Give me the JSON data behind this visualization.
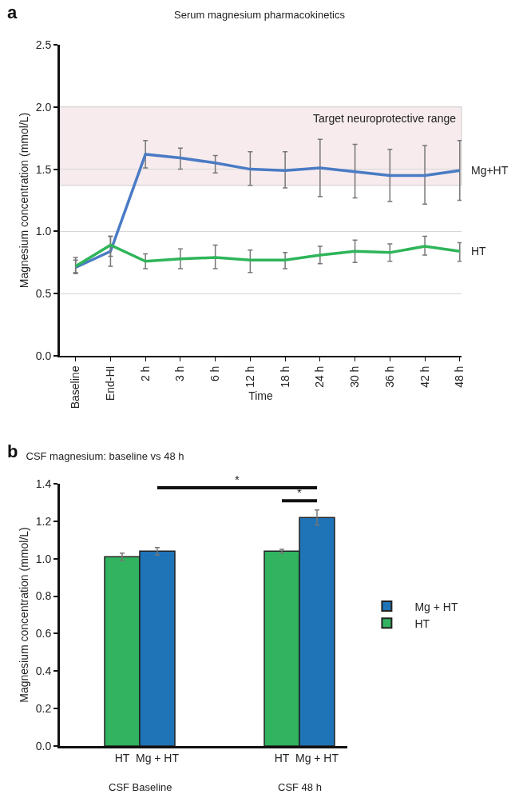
{
  "chart_data": [
    {
      "type": "line",
      "title": "Serum magnesium pharmacokinetics",
      "xlabel": "Time",
      "ylabel": "Magnesium concentration (mmol/L)",
      "annotations": [
        "a"
      ],
      "categories": [
        "Baseline",
        "End-HI",
        "2 h",
        "3 h",
        "6 h",
        "12 h",
        "18 h",
        "24 h",
        "30 h",
        "36 h",
        "42 h",
        "48 h"
      ],
      "series": [
        {
          "name": "Mg+HT",
          "color": "#4a7bc4",
          "values": [
            0.71,
            0.84,
            1.62,
            1.59,
            1.55,
            1.5,
            1.49,
            1.51,
            1.48,
            1.45,
            1.45,
            1.49
          ],
          "errors": [
            [
              0.66,
              0.77
            ],
            [
              0.72,
              0.96
            ],
            [
              1.51,
              1.73
            ],
            [
              1.5,
              1.67
            ],
            [
              1.47,
              1.61
            ],
            [
              1.37,
              1.64
            ],
            [
              1.35,
              1.64
            ],
            [
              1.28,
              1.74
            ],
            [
              1.27,
              1.7
            ],
            [
              1.24,
              1.66
            ],
            [
              1.22,
              1.69
            ],
            [
              1.25,
              1.73
            ]
          ]
        },
        {
          "name": "HT",
          "color": "#2fb55a",
          "values": [
            0.72,
            0.89,
            0.76,
            0.78,
            0.79,
            0.77,
            0.77,
            0.81,
            0.84,
            0.83,
            0.88,
            0.84
          ],
          "errors": [
            [
              0.67,
              0.79
            ],
            [
              0.8,
              0.96
            ],
            [
              0.7,
              0.82
            ],
            [
              0.7,
              0.86
            ],
            [
              0.7,
              0.89
            ],
            [
              0.67,
              0.85
            ],
            [
              0.7,
              0.83
            ],
            [
              0.74,
              0.88
            ],
            [
              0.75,
              0.93
            ],
            [
              0.76,
              0.9
            ],
            [
              0.81,
              0.96
            ],
            [
              0.76,
              0.91
            ]
          ]
        }
      ],
      "ylim": [
        0,
        2.5
      ],
      "yticks": [
        {
          "value": 0,
          "label": "0.0"
        },
        {
          "value": 0.5,
          "label": "0.5"
        },
        {
          "value": 1,
          "label": "1.0"
        },
        {
          "value": 1.5,
          "label": "1.5"
        },
        {
          "value": 2,
          "label": "2.0"
        },
        {
          "value": 2.5,
          "label": "2.5"
        }
      ],
      "bands": [
        {
          "axis": "y",
          "from": 1.37,
          "to": 2.0,
          "label": "Target neuroprotective range",
          "color": "#f7ebee"
        }
      ],
      "grid": "y",
      "legend": false,
      "marker": "none",
      "line_style": "solid"
    },
    {
      "type": "bar",
      "title": "CSF magnesium: baseline vs 48 h",
      "ylabel": "Magnesium concentration (mmol/L)",
      "annotations": [
        "b",
        "*",
        "*"
      ],
      "categories": [
        "CSF Baseline",
        "CSF 48 h"
      ],
      "series": [
        {
          "name": "HT",
          "color": "#32b35f",
          "values": [
            1.01,
            1.04
          ],
          "errors": [
            0.02,
            0.01
          ]
        },
        {
          "name": "Mg + HT",
          "color": "#1f73b7",
          "values": [
            1.04,
            1.22
          ],
          "errors": [
            0.02,
            0.04
          ]
        }
      ],
      "ylim": [
        0,
        1.4
      ],
      "yticks": [
        {
          "value": 0,
          "label": "0.0"
        },
        {
          "value": 0.2,
          "label": "0.2"
        },
        {
          "value": 0.4,
          "label": "0.4"
        },
        {
          "value": 0.6,
          "label": "0.6"
        },
        {
          "value": 0.8,
          "label": "0.8"
        },
        {
          "value": 1,
          "label": "1.0"
        },
        {
          "value": 1.2,
          "label": "1.2"
        },
        {
          "value": 1.4,
          "label": "1.4"
        }
      ],
      "grid": false,
      "legend": "right"
    }
  ]
}
